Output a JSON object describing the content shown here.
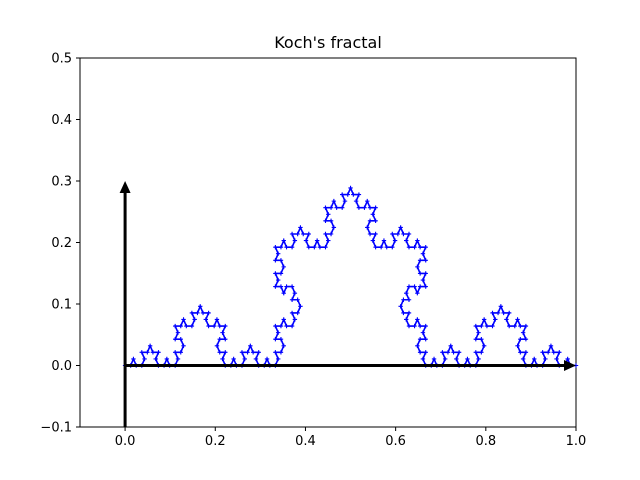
{
  "chart_data": {
    "type": "line",
    "title": "Koch's fractal",
    "xlabel": "",
    "ylabel": "",
    "xlim": [
      -0.1,
      1.0
    ],
    "ylim": [
      -0.1,
      0.5
    ],
    "x_ticks": [
      0.0,
      0.2,
      0.4,
      0.6,
      0.8,
      1.0
    ],
    "x_tick_labels": [
      "0.0",
      "0.2",
      "0.4",
      "0.6",
      "0.8",
      "1.0"
    ],
    "y_ticks": [
      -0.1,
      0.0,
      0.1,
      0.2,
      0.3,
      0.4,
      0.5
    ],
    "y_tick_labels": [
      "−0.1",
      "0.0",
      "0.1",
      "0.2",
      "0.3",
      "0.4",
      "0.5"
    ],
    "grid": false,
    "legend": "none",
    "series": [
      {
        "kind": "koch-curve",
        "start": [
          0.0,
          0.0
        ],
        "end": [
          1.0,
          0.0
        ],
        "iterations": 4,
        "color": "#0000ff",
        "marker": "plus"
      }
    ],
    "arrows": [
      {
        "from": [
          0.0,
          0.0
        ],
        "to": [
          1.0,
          0.0
        ],
        "color": "#000000"
      },
      {
        "from": [
          0.0,
          -0.1
        ],
        "to": [
          0.0,
          0.3
        ],
        "color": "#000000"
      }
    ]
  }
}
